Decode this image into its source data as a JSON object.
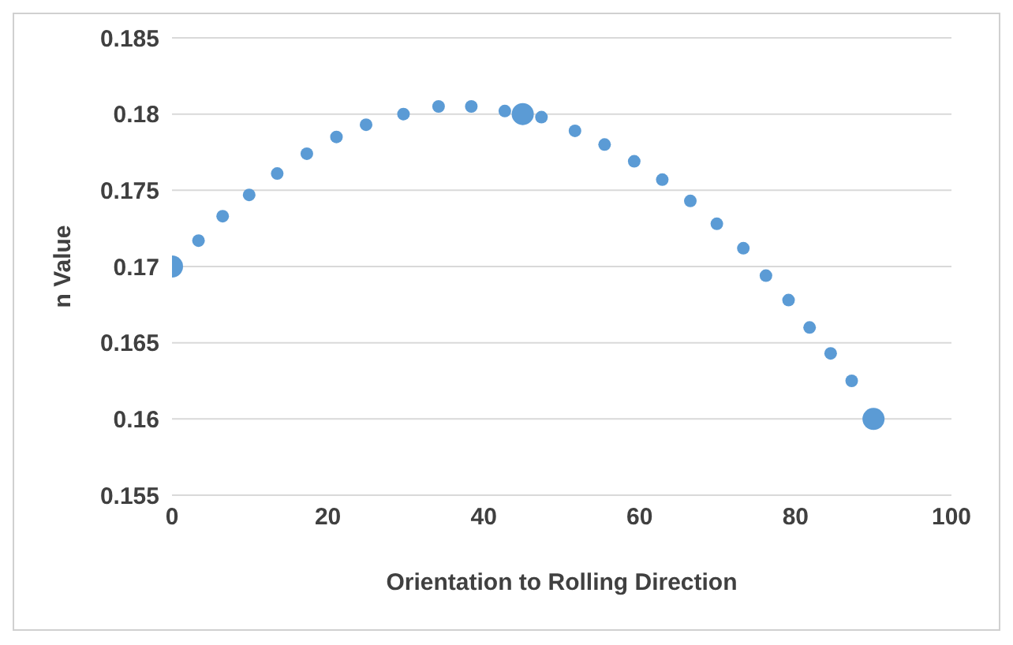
{
  "chart_data": {
    "type": "scatter",
    "xlabel": "Orientation  to Rolling Direction",
    "ylabel": "n Value",
    "xlim": [
      0,
      100
    ],
    "xticks": [
      0,
      20,
      40,
      60,
      80,
      100
    ],
    "ylim": [
      0.155,
      0.185
    ],
    "yticks": [
      0.155,
      0.16,
      0.165,
      0.17,
      0.175,
      0.18,
      0.185
    ],
    "grid": "y",
    "marker": "circle",
    "series": [
      {
        "color": "#5b9bd5",
        "x": [
          3.4,
          6.5,
          9.9,
          13.5,
          17.3,
          21.1,
          24.9,
          29.7,
          34.2,
          38.4,
          42.7,
          47.4,
          51.7,
          55.5,
          59.3,
          62.9,
          66.5,
          69.9,
          73.3,
          76.2,
          79.1,
          81.8,
          84.5,
          87.2
        ],
        "values": [
          0.1717,
          0.1733,
          0.1747,
          0.1761,
          0.1774,
          0.1785,
          0.1793,
          0.18,
          0.1805,
          0.1805,
          0.1802,
          0.1798,
          0.1789,
          0.178,
          0.1769,
          0.1757,
          0.1743,
          0.1728,
          0.1712,
          0.1694,
          0.1678,
          0.166,
          0.1643,
          0.1625
        ]
      },
      {
        "color": "#5b9bd5",
        "x": [
          0,
          45,
          90
        ],
        "values": [
          0.17,
          0.18,
          0.16
        ],
        "sizes": [
          1,
          1,
          1
        ]
      }
    ]
  }
}
